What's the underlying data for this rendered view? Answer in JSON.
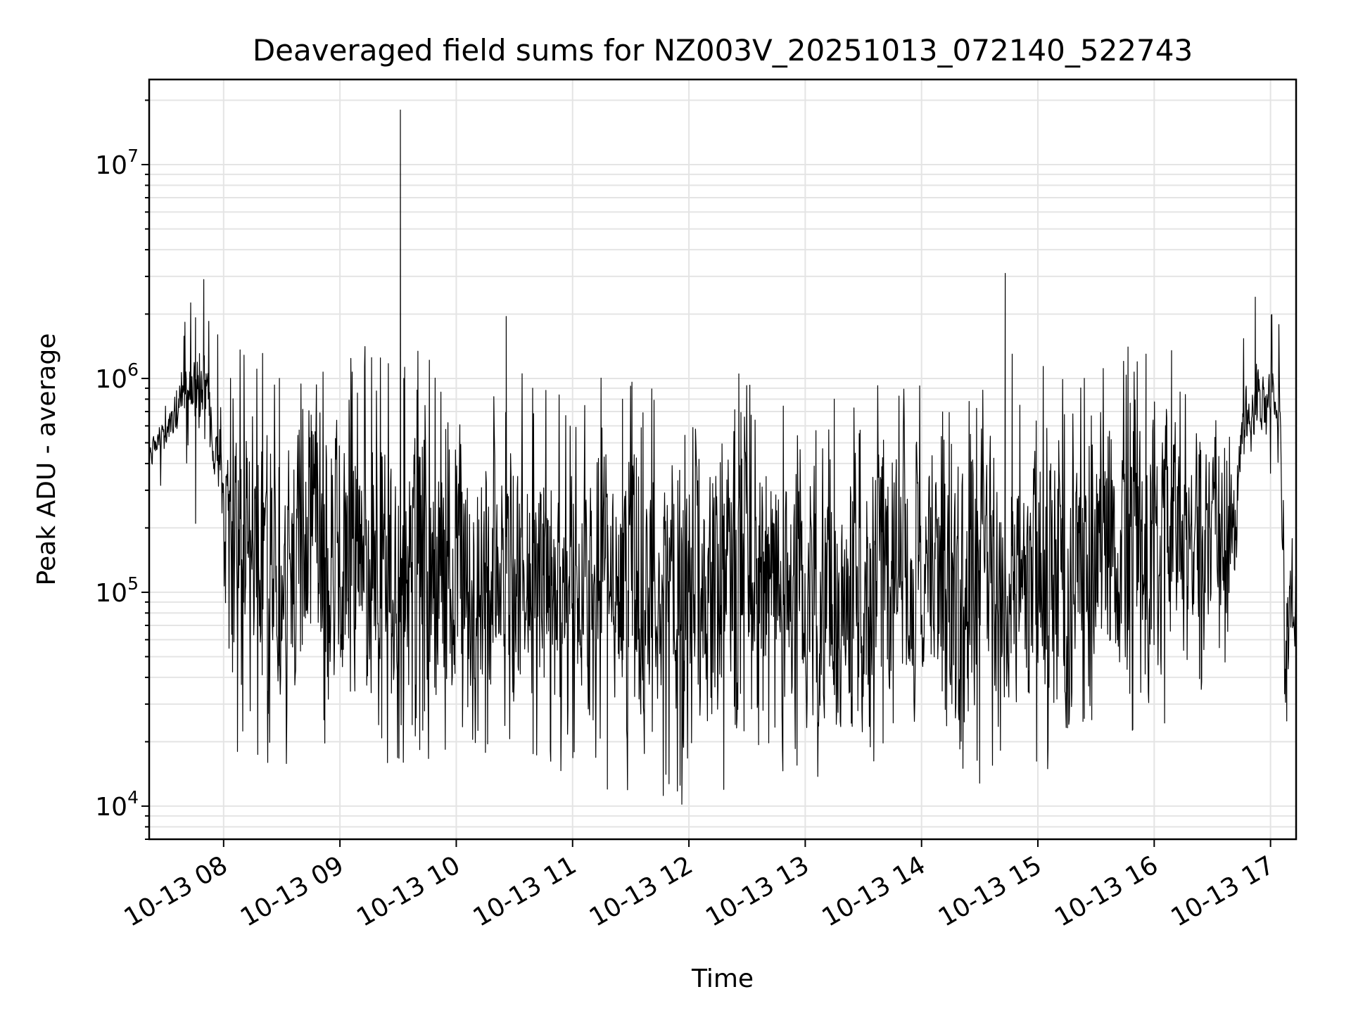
{
  "chart_data": {
    "type": "line",
    "title": "Deaveraged field sums for NZ003V_20251013_072140_522743",
    "xlabel": "Time",
    "ylabel": "Peak ADU - average",
    "yscale": "log",
    "ylim": [
      7000,
      25000000
    ],
    "xlim_hours": [
      7.36,
      17.22
    ],
    "grid": true,
    "x_ticks": [
      {
        "hour": 8,
        "label": "10-13 08"
      },
      {
        "hour": 9,
        "label": "10-13 09"
      },
      {
        "hour": 10,
        "label": "10-13 10"
      },
      {
        "hour": 11,
        "label": "10-13 11"
      },
      {
        "hour": 12,
        "label": "10-13 12"
      },
      {
        "hour": 13,
        "label": "10-13 13"
      },
      {
        "hour": 14,
        "label": "10-13 14"
      },
      {
        "hour": 15,
        "label": "10-13 15"
      },
      {
        "hour": 16,
        "label": "10-13 16"
      },
      {
        "hour": 17,
        "label": "10-13 17"
      }
    ],
    "y_ticks": [
      {
        "value": 10000,
        "base": "10",
        "exp": "4"
      },
      {
        "value": 100000,
        "base": "10",
        "exp": "5"
      },
      {
        "value": 1000000,
        "base": "10",
        "exp": "6"
      },
      {
        "value": 10000000,
        "base": "10",
        "exp": "7"
      }
    ],
    "series": [
      {
        "name": "Deaveraged field sum",
        "color": "#000000",
        "envelope_hours": [
          7.36,
          7.5,
          7.7,
          7.85,
          8.0,
          8.1,
          8.5,
          9.0,
          9.5,
          10.0,
          10.5,
          11.0,
          11.5,
          12.0,
          12.5,
          13.0,
          13.5,
          14.0,
          14.5,
          15.0,
          15.5,
          16.0,
          16.3,
          16.7,
          16.75,
          17.0,
          17.08,
          17.12,
          17.22
        ],
        "envelope_low": [
          380000,
          450000,
          650000,
          600000,
          150000,
          35000,
          20000,
          22000,
          25000,
          22000,
          24000,
          20000,
          18000,
          17000,
          20000,
          21000,
          22000,
          24000,
          21000,
          22000,
          28000,
          27000,
          45000,
          70000,
          400000,
          550000,
          500000,
          30000,
          65000
        ],
        "envelope_high": [
          500000,
          700000,
          1300000,
          1400000,
          450000,
          800000,
          700000,
          800000,
          850000,
          700000,
          650000,
          600000,
          600000,
          550000,
          550000,
          550000,
          550000,
          520000,
          600000,
          650000,
          700000,
          900000,
          900000,
          400000,
          900000,
          1300000,
          1000000,
          180000,
          120000
        ],
        "peaks": [
          {
            "hour": 7.83,
            "value": 2900000
          },
          {
            "hour": 7.95,
            "value": 1600000
          },
          {
            "hour": 8.06,
            "value": 1000000
          },
          {
            "hour": 8.48,
            "value": 1000000
          },
          {
            "hour": 9.52,
            "value": 18000000
          },
          {
            "hour": 9.55,
            "value": 1000000
          },
          {
            "hour": 10.43,
            "value": 1950000
          },
          {
            "hour": 11.43,
            "value": 800000
          },
          {
            "hour": 12.43,
            "value": 1050000
          },
          {
            "hour": 13.25,
            "value": 800000
          },
          {
            "hour": 14.72,
            "value": 3100000
          },
          {
            "hour": 14.78,
            "value": 1300000
          },
          {
            "hour": 15.4,
            "value": 1000000
          },
          {
            "hour": 15.93,
            "value": 1300000
          },
          {
            "hour": 16.15,
            "value": 1350000
          },
          {
            "hour": 16.87,
            "value": 2400000
          }
        ],
        "dips": [
          {
            "hour": 7.76,
            "value": 210000
          },
          {
            "hour": 8.12,
            "value": 18000
          },
          {
            "hour": 8.38,
            "value": 16000
          },
          {
            "hour": 11.3,
            "value": 12000
          },
          {
            "hour": 11.94,
            "value": 10200
          },
          {
            "hour": 14.5,
            "value": 12800
          },
          {
            "hour": 17.14,
            "value": 25000
          }
        ]
      }
    ]
  }
}
